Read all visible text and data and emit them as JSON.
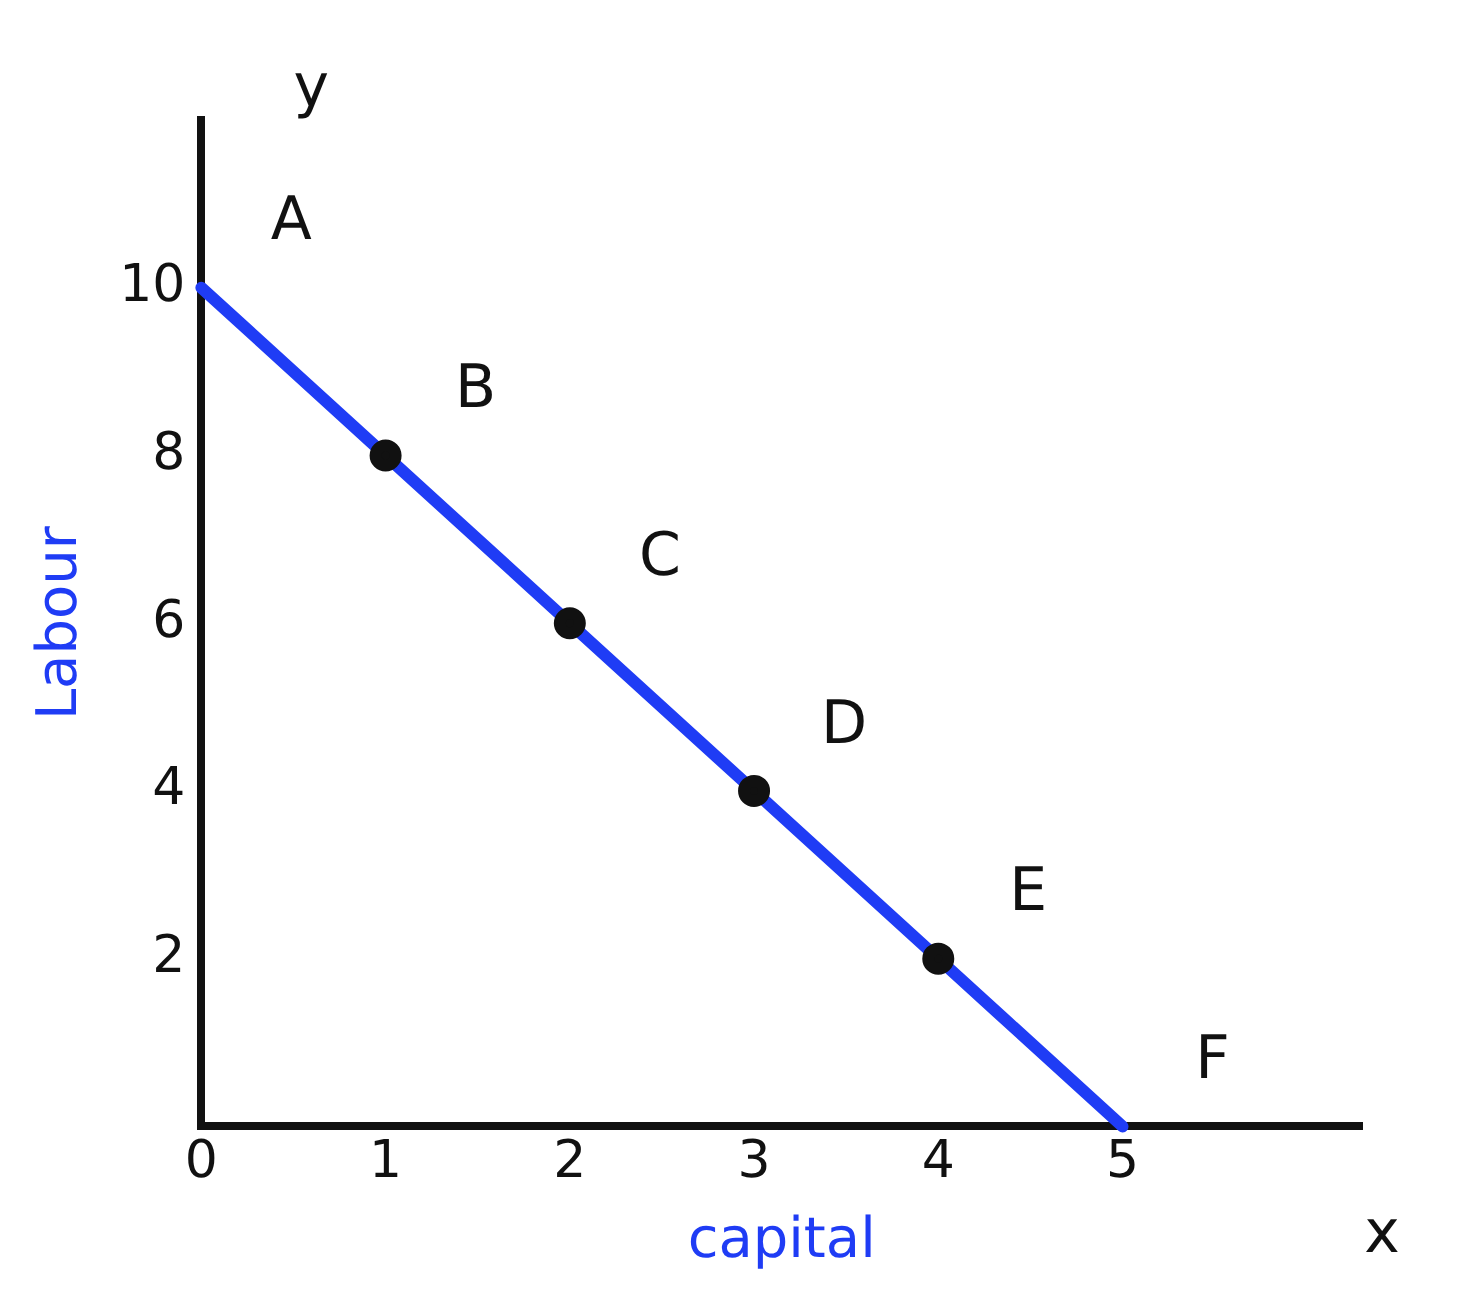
{
  "chart_data": {
    "type": "line",
    "xlabel": "capital",
    "ylabel": "Labour",
    "x": [
      0,
      1,
      2,
      3,
      4,
      5
    ],
    "series": [
      {
        "color": "#1f3cf5",
        "values": [
          10,
          8,
          6,
          4,
          2,
          0
        ],
        "marker": "none"
      },
      {
        "type": "scatter",
        "color": "#111111",
        "x": [
          1,
          2,
          3,
          4
        ],
        "values": [
          8,
          6,
          4,
          2
        ],
        "marker": "circle"
      }
    ],
    "xlim": [
      0,
      6.3
    ],
    "ylim": [
      0,
      12
    ],
    "xticks": [
      0,
      1,
      2,
      3,
      4,
      5
    ],
    "yticks": [
      2,
      4,
      6,
      8,
      10
    ],
    "grid": false,
    "legend": false,
    "line_style": "solid",
    "annotations": [
      {
        "text": "A",
        "x": 0,
        "y": 10
      },
      {
        "text": "B",
        "x": 1,
        "y": 8
      },
      {
        "text": "C",
        "x": 2,
        "y": 6
      },
      {
        "text": "D",
        "x": 3,
        "y": 4
      },
      {
        "text": "E",
        "x": 4,
        "y": 2
      },
      {
        "text": "F",
        "x": 5,
        "y": 0
      },
      "y",
      "x"
    ]
  }
}
